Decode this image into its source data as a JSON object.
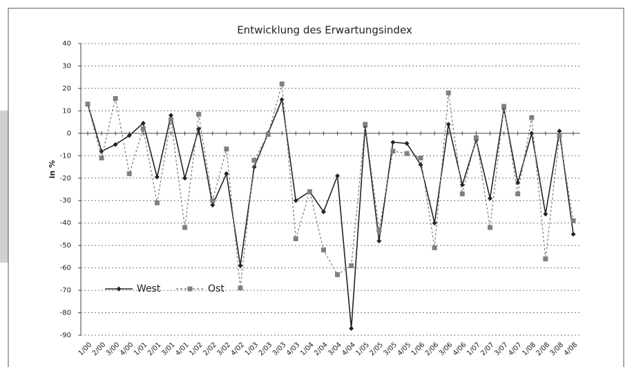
{
  "chart_data": {
    "type": "line",
    "title": "Entwicklung des Erwartungsindex",
    "y_label": "in %",
    "categories": [
      "1/00",
      "2/00",
      "3/00",
      "4/00",
      "1/01",
      "2/01",
      "3/01",
      "4/01",
      "1/02",
      "2/02",
      "3/02",
      "4/02",
      "1/03",
      "2/03",
      "3/03",
      "4/03",
      "1/04",
      "2/04",
      "3/04",
      "4/04",
      "1/05",
      "2/05",
      "3/05",
      "4/05",
      "1/06",
      "2/06",
      "3/06",
      "4/06",
      "1/07",
      "2/07",
      "3/07",
      "4/07",
      "1/08",
      "2/08",
      "3/08",
      "4/08"
    ],
    "series": [
      {
        "name": "West",
        "color": "#222222",
        "values": [
          13,
          -8,
          -5,
          -1,
          4.5,
          -19.5,
          8,
          -20,
          2,
          -32,
          -18,
          -59,
          -15,
          0,
          15,
          -30,
          -26,
          -35,
          -19,
          -87,
          3,
          -48,
          -4,
          -4.5,
          -14,
          -40,
          4,
          -23,
          -3,
          -29,
          11,
          -22,
          0,
          -36,
          1,
          -45
        ]
      },
      {
        "name": "Ost",
        "color": "#808080",
        "values": [
          13,
          -11,
          15.5,
          -18,
          2,
          -31,
          6,
          -42,
          8.5,
          -30,
          -7,
          -69,
          -12,
          -0.5,
          22,
          -47,
          -26,
          -52,
          -63,
          -59,
          4,
          -43,
          -8,
          -9,
          -11,
          -51,
          18,
          -27,
          -2,
          -42,
          12,
          -27,
          7,
          -56,
          -1,
          -39
        ]
      }
    ],
    "ylim": [
      -90,
      40
    ],
    "yticks": [
      -90,
      -80,
      -70,
      -60,
      -50,
      -40,
      -30,
      -20,
      -10,
      0,
      10,
      20,
      30,
      40
    ],
    "grid": true,
    "legend": "bottom-left"
  }
}
